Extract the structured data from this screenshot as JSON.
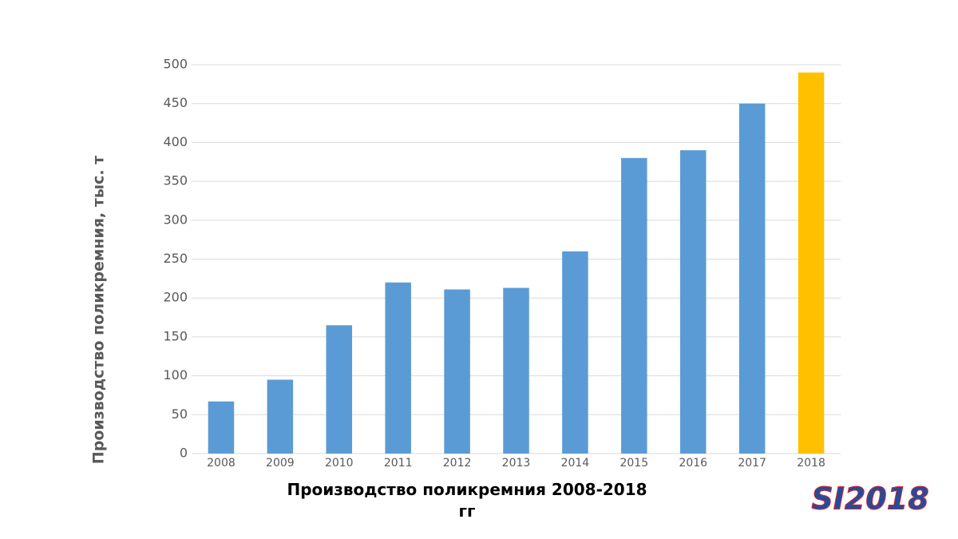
{
  "chart_data": {
    "type": "bar",
    "title": "Производство поликремния 2008-2018 гг",
    "y_label": "Производство поликремния, тыс. т",
    "logo": "SI2018",
    "categories": [
      "2008",
      "2009",
      "2010",
      "2011",
      "2012",
      "2013",
      "2014",
      "2015",
      "2016",
      "2017",
      "2018"
    ],
    "values": [
      67,
      95,
      165,
      220,
      211,
      213,
      260,
      380,
      390,
      450,
      490
    ],
    "colors": [
      "#5b9bd5",
      "#5b9bd5",
      "#5b9bd5",
      "#5b9bd5",
      "#5b9bd5",
      "#5b9bd5",
      "#5b9bd5",
      "#5b9bd5",
      "#5b9bd5",
      "#5b9bd5",
      "#ffc000"
    ],
    "ylim": [
      0,
      500
    ],
    "yticks": [
      0,
      50,
      100,
      150,
      200,
      250,
      300,
      350,
      400,
      450,
      500
    ],
    "grid": true
  }
}
